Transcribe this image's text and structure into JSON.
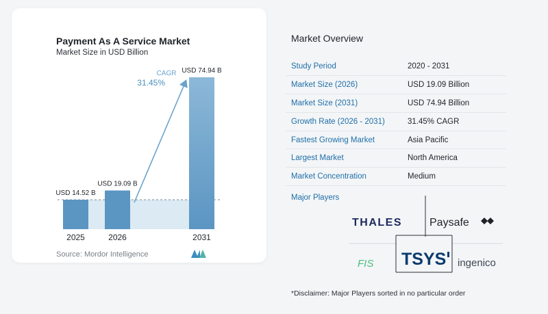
{
  "chart_data": {
    "type": "bar",
    "title": "Payment As A Service Market",
    "subtitle": "Market Size in USD Billion",
    "categories": [
      "2025",
      "2026",
      "2031"
    ],
    "values": [
      14.52,
      19.09,
      74.94
    ],
    "value_labels": [
      "USD 14.52 B",
      "USD 19.09 B",
      "USD 74.94 B"
    ],
    "annotation": {
      "label": "CAGR",
      "value": "31.45%"
    },
    "ylim": [
      0,
      80
    ],
    "colors": {
      "bar": "#5b95c2",
      "bar_light": "#8cb8d8",
      "band": "#dceaf4",
      "arrow": "#6aa3cc"
    }
  },
  "source": "Source:  Mordor Intelligence",
  "overview": {
    "title": "Market Overview",
    "rows": [
      {
        "label": "Study Period",
        "value": "2020 - 2031"
      },
      {
        "label": "Market Size (2026)",
        "value": "USD 19.09 Billion"
      },
      {
        "label": "Market Size (2031)",
        "value": "USD 74.94 Billion"
      },
      {
        "label": "Growth Rate (2026 - 2031)",
        "value": "31.45% CAGR"
      },
      {
        "label": "Fastest Growing Market",
        "value": "Asia Pacific"
      },
      {
        "label": "Largest Market",
        "value": "North America"
      },
      {
        "label": "Market Concentration",
        "value": "Medium"
      }
    ]
  },
  "players": {
    "title": "Major Players",
    "logos": [
      "THALES",
      "Paysafe",
      "FIS",
      "TSYS",
      "ingenico"
    ]
  },
  "disclaimer": "*Disclaimer: Major Players sorted in no particular order"
}
